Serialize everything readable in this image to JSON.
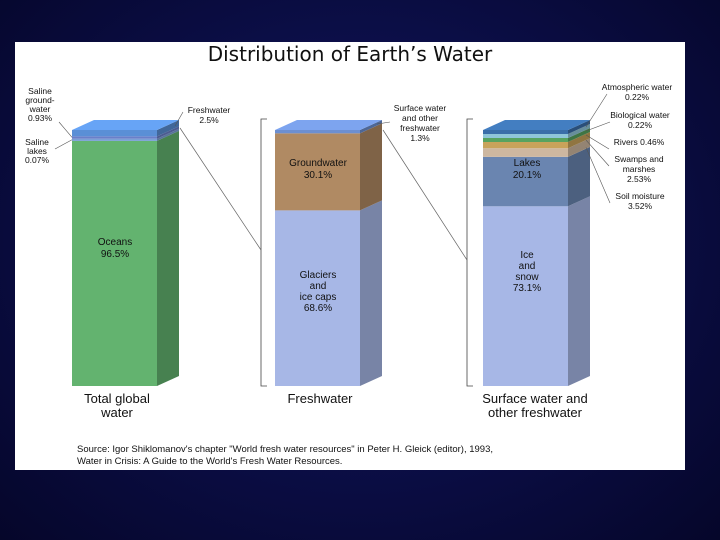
{
  "title": "Distribution of Earth’s Water",
  "source_line1": "Source: Igor Shiklomanov's chapter \"World fresh water resources\" in Peter H. Gleick (editor), 1993,",
  "source_line2": "Water in Crisis: A Guide to the World's Fresh Water Resources.",
  "colors": {
    "oceans": "#63b36f",
    "saline_groundwater": "#6a7fc9",
    "saline_lakes": "#7aa0d6",
    "freshwater_slice": "#5a8fd6",
    "glaciers": "#a7b7e6",
    "groundwater": "#b08a63",
    "surface_fresh": "#6d8fd0",
    "ice_snow": "#a7b7e6",
    "lakes": "#6a85b0",
    "swamps": "#c8a35a",
    "soil_moisture": "#cdb7a0",
    "rivers": "#57a35f",
    "biological": "#8fc5d8",
    "atmospheric": "#3a6ea8"
  },
  "chart_data": [
    {
      "type": "bar",
      "category": "Total global water",
      "series": [
        {
          "name": "Oceans",
          "value": 96.5,
          "label": "Oceans\n96.5%"
        },
        {
          "name": "Saline lakes",
          "value": 0.07,
          "label": "Saline\nlakes\n0.07%"
        },
        {
          "name": "Saline groundwater",
          "value": 0.93,
          "label": "Saline\nground-\nwater\n0.93%"
        },
        {
          "name": "Freshwater",
          "value": 2.5,
          "label": "Freshwater\n2.5%"
        }
      ]
    },
    {
      "type": "bar",
      "category": "Freshwater",
      "series": [
        {
          "name": "Glaciers and ice caps",
          "value": 68.6,
          "label": "Glaciers\nand\nice caps\n68.6%"
        },
        {
          "name": "Groundwater",
          "value": 30.1,
          "label": "Groundwater\n30.1%"
        },
        {
          "name": "Surface water and other freshwater",
          "value": 1.3,
          "label": "Surface water\nand other\nfreshwater\n1.3%"
        }
      ]
    },
    {
      "type": "bar",
      "category": "Surface water and other freshwater",
      "series": [
        {
          "name": "Ice and snow",
          "value": 73.1,
          "label": "Ice\nand\nsnow\n73.1%"
        },
        {
          "name": "Lakes",
          "value": 20.1,
          "label": "Lakes\n20.1%"
        },
        {
          "name": "Soil moisture",
          "value": 3.52,
          "label": "Soil moisture\n3.52%"
        },
        {
          "name": "Swamps and marshes",
          "value": 2.53,
          "label": "Swamps and\nmarshes\n2.53%"
        },
        {
          "name": "Rivers",
          "value": 0.46,
          "label": "Rivers  0.46%"
        },
        {
          "name": "Biological water",
          "value": 0.22,
          "label": "Biological water\n0.22%"
        },
        {
          "name": "Atmospheric water",
          "value": 0.22,
          "label": "Atmospheric water\n0.22%"
        }
      ]
    }
  ],
  "category_labels": [
    "Total global\nwater",
    "Freshwater",
    "Surface water and\nother freshwater"
  ]
}
